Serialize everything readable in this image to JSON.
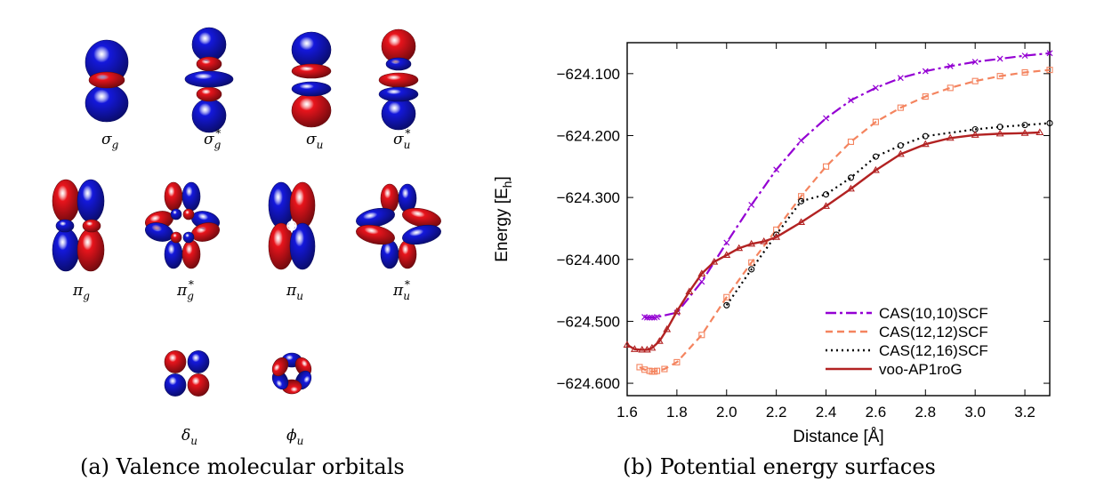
{
  "panel_a": {
    "caption": "(a) Valence molecular orbitals",
    "orbitals": [
      {
        "label": "σ",
        "sub": "g",
        "sup": "",
        "kind": "sigma"
      },
      {
        "label": "σ",
        "sub": "g",
        "sup": "*",
        "kind": "sigma_star"
      },
      {
        "label": "σ",
        "sub": "u",
        "sup": "",
        "kind": "sigma_u"
      },
      {
        "label": "σ",
        "sub": "u",
        "sup": "*",
        "kind": "sigma_u_star"
      },
      {
        "label": "π",
        "sub": "g",
        "sup": "",
        "kind": "pi"
      },
      {
        "label": "π",
        "sub": "g",
        "sup": "*",
        "kind": "pi_star"
      },
      {
        "label": "π",
        "sub": "u",
        "sup": "",
        "kind": "pi_u"
      },
      {
        "label": "π",
        "sub": "u",
        "sup": "*",
        "kind": "pi_u_star"
      },
      {
        "label": "δ",
        "sub": "u",
        "sup": "",
        "kind": "delta"
      },
      {
        "label": "ϕ",
        "sub": "u",
        "sup": "",
        "kind": "phi"
      }
    ],
    "colors": {
      "positive": "#e8141c",
      "negative": "#1418dc"
    }
  },
  "panel_b": {
    "caption": "(b) Potential energy surfaces"
  },
  "chart_data": {
    "type": "line",
    "title": "",
    "xlabel": "Distance [Å]",
    "ylabel_main": "Energy [E",
    "ylabel_sub": "h",
    "ylabel_end": "]",
    "xlim": [
      1.6,
      3.3
    ],
    "ylim": [
      -624.62,
      -624.05
    ],
    "xticks": [
      1.6,
      1.8,
      2.0,
      2.2,
      2.4,
      2.6,
      2.8,
      3.0,
      3.2
    ],
    "xtick_labels": [
      "1.6",
      "1.8",
      "2.0",
      "2.2",
      "2.4",
      "2.6",
      "2.8",
      "3.0",
      "3.2"
    ],
    "yticks": [
      -624.1,
      -624.2,
      -624.3,
      -624.4,
      -624.5,
      -624.6
    ],
    "ytick_labels": [
      "−624.100",
      "−624.200",
      "−624.300",
      "−624.400",
      "−624.500",
      "−624.600"
    ],
    "legend_position": "bottom-right",
    "series": [
      {
        "name": "CAS(10,10)SCF",
        "color": "#9400d3",
        "dash": "12,4,3,4",
        "marker": "cross",
        "x": [
          1.67,
          1.68,
          1.69,
          1.7,
          1.71,
          1.72,
          1.8,
          1.9,
          2.0,
          2.1,
          2.2,
          2.3,
          2.4,
          2.5,
          2.6,
          2.7,
          2.8,
          2.9,
          3.0,
          3.1,
          3.2,
          3.3
        ],
        "y": [
          -624.493,
          -624.494,
          -624.494,
          -624.494,
          -624.494,
          -624.493,
          -624.486,
          -624.436,
          -624.373,
          -624.312,
          -624.255,
          -624.208,
          -624.172,
          -624.143,
          -624.123,
          -624.107,
          -624.096,
          -624.088,
          -624.081,
          -624.076,
          -624.071,
          -624.067
        ]
      },
      {
        "name": "CAS(12,12)SCF",
        "color": "#f4845f",
        "dash": "8,5",
        "marker": "square",
        "x": [
          1.65,
          1.67,
          1.69,
          1.7,
          1.71,
          1.72,
          1.75,
          1.8,
          1.9,
          2.0,
          2.1,
          2.2,
          2.3,
          2.4,
          2.5,
          2.6,
          2.7,
          2.8,
          2.9,
          3.0,
          3.1,
          3.2,
          3.3
        ],
        "y": [
          -624.574,
          -624.578,
          -624.58,
          -624.581,
          -624.581,
          -624.58,
          -624.577,
          -624.566,
          -624.522,
          -624.461,
          -624.405,
          -624.352,
          -624.298,
          -624.25,
          -624.21,
          -624.178,
          -624.155,
          -624.137,
          -624.123,
          -624.112,
          -624.104,
          -624.098,
          -624.094
        ]
      },
      {
        "name": "CAS(12,16)SCF",
        "color": "#000000",
        "dash": "2,4",
        "marker": "circle",
        "x": [
          2.0,
          2.1,
          2.2,
          2.3,
          2.4,
          2.5,
          2.6,
          2.7,
          2.8,
          3.0,
          3.1,
          3.2,
          3.3
        ],
        "y": [
          -624.474,
          -624.416,
          -624.36,
          -624.306,
          -624.295,
          -624.268,
          -624.234,
          -624.216,
          -624.201,
          -624.19,
          -624.186,
          -624.183,
          -624.18
        ]
      },
      {
        "name": "voo-AP1roG",
        "color": "#b22222",
        "dash": "",
        "marker": "triangle",
        "x": [
          1.6,
          1.63,
          1.66,
          1.68,
          1.7,
          1.73,
          1.76,
          1.8,
          1.85,
          1.9,
          1.95,
          2.0,
          2.05,
          2.1,
          2.15,
          2.2,
          2.3,
          2.4,
          2.5,
          2.6,
          2.7,
          2.8,
          2.9,
          3.0,
          3.1,
          3.2,
          3.26
        ],
        "y": [
          -624.538,
          -624.545,
          -624.546,
          -624.546,
          -624.543,
          -624.532,
          -624.513,
          -624.484,
          -624.452,
          -624.423,
          -624.404,
          -624.393,
          -624.382,
          -624.375,
          -624.371,
          -624.364,
          -624.34,
          -624.314,
          -624.286,
          -624.256,
          -624.23,
          -624.214,
          -624.204,
          -624.199,
          -624.197,
          -624.196,
          -624.195
        ]
      }
    ]
  }
}
